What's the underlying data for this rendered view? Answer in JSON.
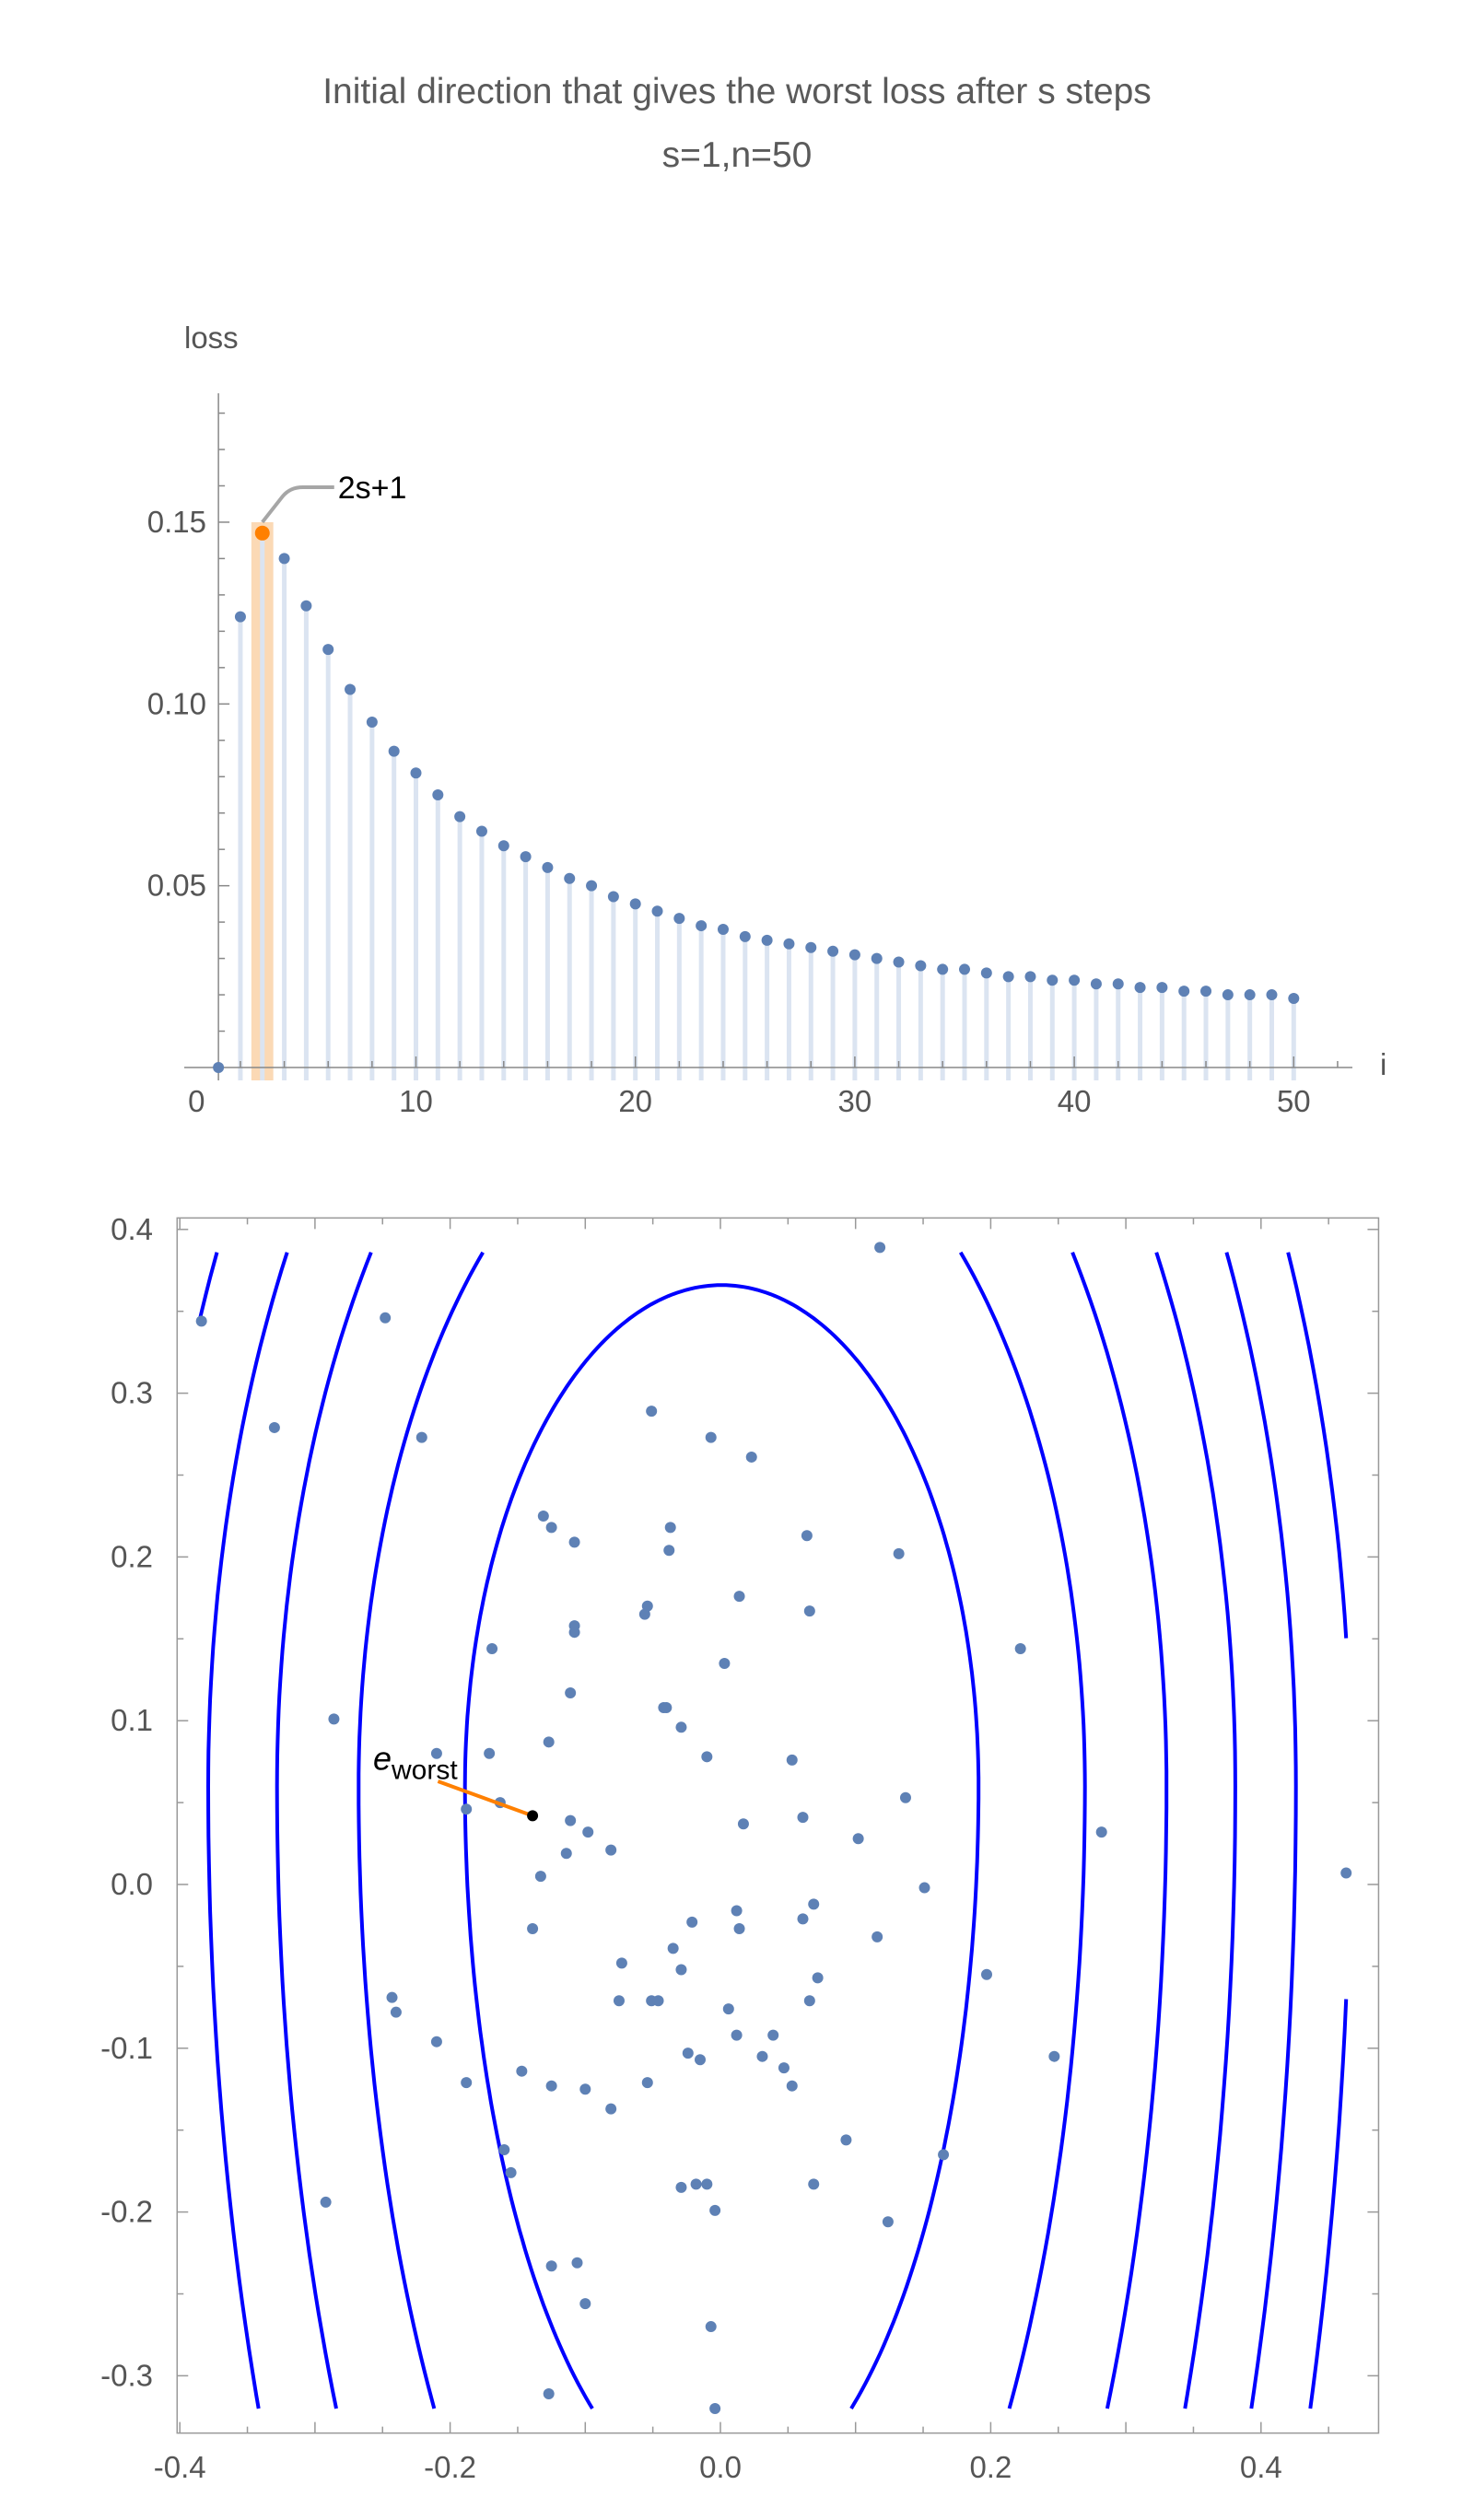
{
  "title": {
    "line1": "Initial direction that gives the worst loss after s steps",
    "line2": "s=1,n=50"
  },
  "colors": {
    "points": "#5e81b5",
    "stems": "#dbe4f1",
    "highlight": "#ff8000",
    "highlight_band": "#fbd9b5",
    "contours": "#0000ff",
    "callout": "#a6a6a6"
  },
  "chart_data": [
    {
      "type": "scatter",
      "style": "stem",
      "xlabel": "i",
      "ylabel": "loss",
      "xlim": [
        0,
        52.5
      ],
      "ylim": [
        0,
        0.185
      ],
      "xticks": [
        "0",
        "10",
        "20",
        "30",
        "40",
        "50"
      ],
      "yticks": [
        "0.05",
        "0.10",
        "0.15"
      ],
      "x": [
        1,
        2,
        3,
        4,
        5,
        6,
        7,
        8,
        9,
        10,
        11,
        12,
        13,
        14,
        15,
        16,
        17,
        18,
        19,
        20,
        21,
        22,
        23,
        24,
        25,
        26,
        27,
        28,
        29,
        30,
        31,
        32,
        33,
        34,
        35,
        36,
        37,
        38,
        39,
        40,
        41,
        42,
        43,
        44,
        45,
        46,
        47,
        48,
        49,
        50
      ],
      "y": [
        0,
        0.124,
        0.147,
        0.14,
        0.127,
        0.115,
        0.104,
        0.095,
        0.087,
        0.081,
        0.075,
        0.069,
        0.065,
        0.061,
        0.058,
        0.055,
        0.052,
        0.05,
        0.047,
        0.045,
        0.043,
        0.041,
        0.039,
        0.038,
        0.036,
        0.035,
        0.034,
        0.033,
        0.032,
        0.031,
        0.03,
        0.029,
        0.028,
        0.027,
        0.027,
        0.026,
        0.025,
        0.025,
        0.024,
        0.024,
        0.023,
        0.023,
        0.022,
        0.022,
        0.021,
        0.021,
        0.02,
        0.02,
        0.02,
        0.019
      ],
      "highlight_x": 3,
      "annotation": "2s+1",
      "grid": false
    },
    {
      "type": "scatter",
      "with_contours": true,
      "contour_count": 6,
      "xlim": [
        -0.402,
        0.487
      ],
      "ylim": [
        -0.335,
        0.407
      ],
      "xticks": [
        "-0.4",
        "-0.2",
        "0.0",
        "0.2",
        "0.4"
      ],
      "yticks": [
        "-0.3",
        "-0.2",
        "-0.1",
        "0.0",
        "0.1",
        "0.2",
        "0.3",
        "0.4"
      ],
      "points": [
        [
          -0.384,
          0.344
        ],
        [
          -0.248,
          0.346
        ],
        [
          -0.33,
          0.279
        ],
        [
          -0.221,
          0.273
        ],
        [
          -0.051,
          0.289
        ],
        [
          -0.007,
          0.273
        ],
        [
          0.023,
          0.261
        ],
        [
          0.118,
          0.389
        ],
        [
          -0.131,
          0.225
        ],
        [
          -0.125,
          0.218
        ],
        [
          -0.108,
          0.209
        ],
        [
          -0.037,
          0.218
        ],
        [
          -0.038,
          0.204
        ],
        [
          0.064,
          0.213
        ],
        [
          0.132,
          0.202
        ],
        [
          0.014,
          0.176
        ],
        [
          -0.054,
          0.17
        ],
        [
          -0.056,
          0.165
        ],
        [
          0.066,
          0.167
        ],
        [
          -0.108,
          0.158
        ],
        [
          -0.108,
          0.154
        ],
        [
          -0.169,
          0.144
        ],
        [
          0.222,
          0.144
        ],
        [
          0.003,
          0.135
        ],
        [
          -0.111,
          0.117
        ],
        [
          -0.042,
          0.108
        ],
        [
          -0.04,
          0.108
        ],
        [
          -0.286,
          0.101
        ],
        [
          -0.029,
          0.096
        ],
        [
          -0.127,
          0.087
        ],
        [
          -0.21,
          0.08
        ],
        [
          -0.171,
          0.08
        ],
        [
          -0.01,
          0.078
        ],
        [
          0.053,
          0.076
        ],
        [
          0.137,
          0.053
        ],
        [
          -0.163,
          0.05
        ],
        [
          -0.188,
          0.046
        ],
        [
          -0.111,
          0.039
        ],
        [
          0.017,
          0.037
        ],
        [
          0.061,
          0.041
        ],
        [
          -0.098,
          0.032
        ],
        [
          0.282,
          0.032
        ],
        [
          0.102,
          0.028
        ],
        [
          -0.114,
          0.019
        ],
        [
          -0.081,
          0.021
        ],
        [
          -0.133,
          0.005
        ],
        [
          0.463,
          0.007
        ],
        [
          0.151,
          -0.002
        ],
        [
          0.069,
          -0.012
        ],
        [
          0.012,
          -0.016
        ],
        [
          0.061,
          -0.021
        ],
        [
          -0.021,
          -0.023
        ],
        [
          -0.139,
          -0.027
        ],
        [
          0.014,
          -0.027
        ],
        [
          0.116,
          -0.032
        ],
        [
          -0.035,
          -0.039
        ],
        [
          -0.073,
          -0.048
        ],
        [
          -0.029,
          -0.052
        ],
        [
          0.197,
          -0.055
        ],
        [
          0.072,
          -0.057
        ],
        [
          -0.243,
          -0.069
        ],
        [
          -0.075,
          -0.071
        ],
        [
          -0.051,
          -0.071
        ],
        [
          -0.046,
          -0.071
        ],
        [
          0.066,
          -0.071
        ],
        [
          -0.24,
          -0.078
        ],
        [
          0.006,
          -0.076
        ],
        [
          0.012,
          -0.092
        ],
        [
          0.039,
          -0.092
        ],
        [
          -0.21,
          -0.096
        ],
        [
          -0.024,
          -0.103
        ],
        [
          -0.015,
          -0.107
        ],
        [
          0.031,
          -0.105
        ],
        [
          0.247,
          -0.105
        ],
        [
          0.047,
          -0.112
        ],
        [
          -0.147,
          -0.114
        ],
        [
          -0.188,
          -0.121
        ],
        [
          -0.054,
          -0.121
        ],
        [
          -0.125,
          -0.123
        ],
        [
          0.053,
          -0.123
        ],
        [
          -0.1,
          -0.125
        ],
        [
          -0.081,
          -0.137
        ],
        [
          0.093,
          -0.156
        ],
        [
          -0.16,
          -0.162
        ],
        [
          0.165,
          -0.165
        ],
        [
          -0.155,
          -0.176
        ],
        [
          -0.018,
          -0.183
        ],
        [
          -0.01,
          -0.183
        ],
        [
          0.069,
          -0.183
        ],
        [
          -0.029,
          -0.185
        ],
        [
          -0.292,
          -0.194
        ],
        [
          -0.004,
          -0.199
        ],
        [
          0.124,
          -0.206
        ],
        [
          -0.106,
          -0.231
        ],
        [
          -0.125,
          -0.233
        ],
        [
          -0.1,
          -0.256
        ],
        [
          -0.007,
          -0.27
        ],
        [
          -0.127,
          -0.311
        ],
        [
          -0.004,
          -0.32
        ]
      ],
      "worst_point": [
        -0.139,
        0.042
      ],
      "worst_arrow_tip": [
        -0.209,
        0.063
      ],
      "annotation": {
        "base": "e",
        "subscript": "worst"
      },
      "grid": false
    }
  ]
}
